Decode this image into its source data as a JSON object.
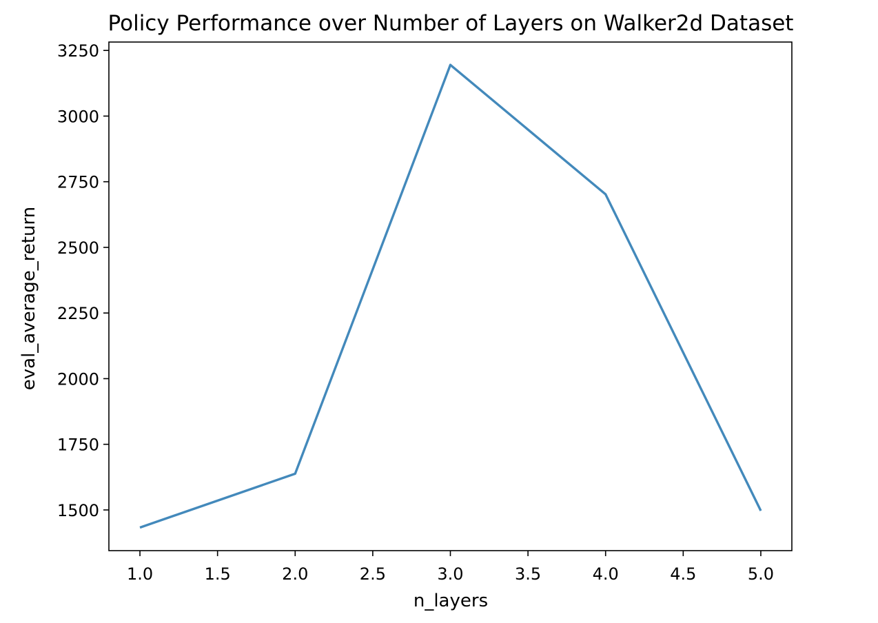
{
  "chart_data": {
    "type": "line",
    "title": "Policy Performance over Number of Layers on Walker2d Dataset",
    "xlabel": "n_layers",
    "ylabel": "eval_average_return",
    "xlim": [
      0.8,
      5.2
    ],
    "ylim": [
      1345,
      3282
    ],
    "xticks": [
      1.0,
      1.5,
      2.0,
      2.5,
      3.0,
      3.5,
      4.0,
      4.5,
      5.0
    ],
    "xtick_labels": [
      "1.0",
      "1.5",
      "2.0",
      "2.5",
      "3.0",
      "3.5",
      "4.0",
      "4.5",
      "5.0"
    ],
    "yticks": [
      1500,
      1750,
      2000,
      2250,
      2500,
      2750,
      3000,
      3250
    ],
    "ytick_labels": [
      "1500",
      "1750",
      "2000",
      "2250",
      "2500",
      "2750",
      "3000",
      "3250"
    ],
    "grid": false,
    "legend": "none",
    "line_color": "#4389bb",
    "series": [
      {
        "x": [
          1,
          2,
          3,
          4,
          5
        ],
        "values": [
          1433,
          1638,
          3195,
          2702,
          1497
        ]
      }
    ]
  }
}
